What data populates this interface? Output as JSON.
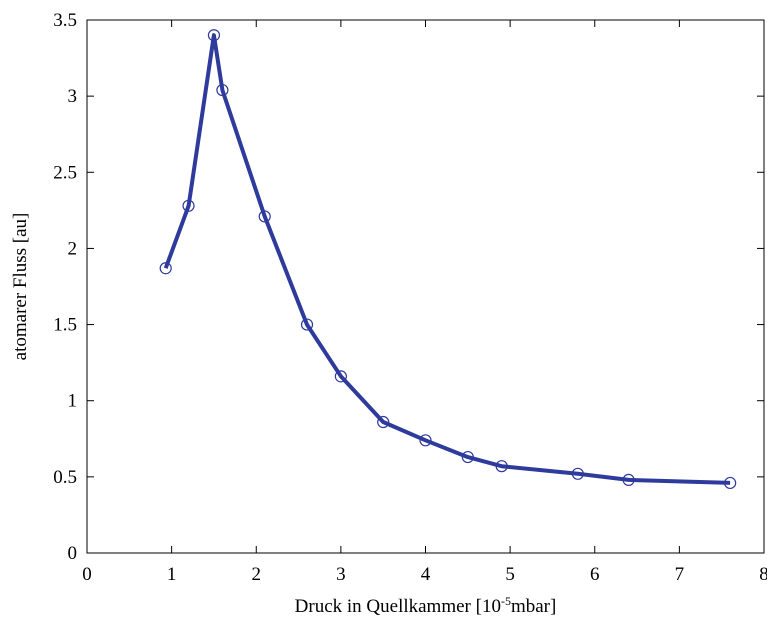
{
  "chart_data": {
    "type": "line",
    "title": "",
    "xlabel": "Druck in Quellkammer [10",
    "xlabel_sup": "-5",
    "xlabel_suffix": "mbar]",
    "ylabel": "atomarer Fluss [au]",
    "xlim": [
      0,
      8
    ],
    "ylim": [
      0,
      3.5
    ],
    "xticks": [
      0,
      1,
      2,
      3,
      4,
      5,
      6,
      7,
      8
    ],
    "xtick_labels": [
      "0",
      "1",
      "2",
      "3",
      "4",
      "5",
      "6",
      "7",
      "8"
    ],
    "yticks": [
      0,
      0.5,
      1,
      1.5,
      2,
      2.5,
      3,
      3.5
    ],
    "ytick_labels": [
      "0",
      "0.5",
      "1",
      "1.5",
      "2",
      "2.5",
      "3",
      "3.5"
    ],
    "grid": false,
    "series": [
      {
        "color": "#2e3a9c",
        "marker": "open-circle",
        "x": [
          0.93,
          1.2,
          1.5,
          1.6,
          2.1,
          2.6,
          3.0,
          3.5,
          4.0,
          4.5,
          4.9,
          5.8,
          6.4,
          7.6
        ],
        "y": [
          1.87,
          2.28,
          3.4,
          3.04,
          2.21,
          1.5,
          1.16,
          0.86,
          0.74,
          0.63,
          0.57,
          0.52,
          0.48,
          0.46
        ]
      }
    ]
  }
}
